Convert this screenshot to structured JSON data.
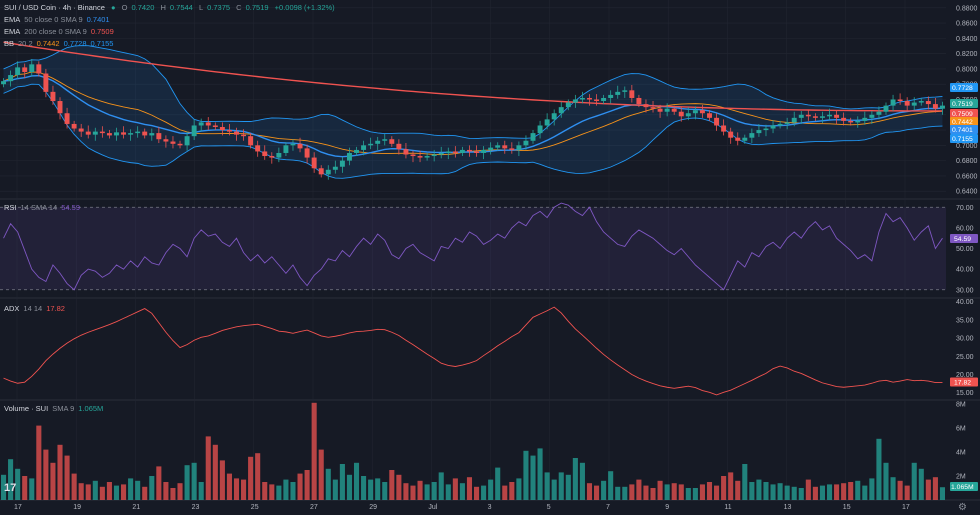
{
  "header": {
    "symbol_title": "SUI / USD Coin · 4h · Binance",
    "ohlc": {
      "o_label": "O",
      "o": "0.7420",
      "h_label": "H",
      "h": "0.7544",
      "l_label": "L",
      "l": "0.7375",
      "c_label": "C",
      "c": "0.7519",
      "change": "+0.0098 (+1.32%)"
    },
    "ema50": {
      "label": "EMA",
      "params": "50 close 0 SMA 9",
      "value": "0.7401"
    },
    "ema200": {
      "label": "EMA",
      "params": "200 close 0 SMA 9",
      "value": "0.7509"
    },
    "bb": {
      "label": "BB",
      "params": "20 2",
      "basis": "0.7442",
      "upper": "0.7728",
      "lower": "0.7155"
    }
  },
  "rsi_legend": {
    "label": "RSI",
    "params": "14 SMA 14",
    "value": "54.59"
  },
  "adx_legend": {
    "label": "ADX",
    "params": "14 14",
    "value": "17.82"
  },
  "volume_legend": {
    "label": "Volume · SUI",
    "params": "SMA 9",
    "value": "1.065M"
  },
  "colors": {
    "bg": "#161a25",
    "up": "#26a69a",
    "down": "#ef5350",
    "ema50": "#2f8ff0",
    "ema200": "#f05350",
    "bb_basis": "#f7931a",
    "bb_band": "#2196f3",
    "rsi": "#7e57c2",
    "adx": "#f05350",
    "grid": "#232733",
    "text": "#d1d4dc"
  },
  "chart_data": [
    {
      "type": "candlestick",
      "title": "SUI / USD Coin · 4h · Binance",
      "xlabel": "",
      "ylabel": "",
      "x_ticks": [
        "17",
        "19",
        "21",
        "23",
        "25",
        "27",
        "29",
        "Jul",
        "3",
        "5",
        "7",
        "9",
        "11",
        "13",
        "15",
        "17"
      ],
      "y_ticks": [
        "0.8800",
        "0.8600",
        "0.8400",
        "0.8200",
        "0.8000",
        "0.7800",
        "0.7600",
        "0.7400",
        "0.7200",
        "0.7000",
        "0.6800",
        "0.6600",
        "0.6400"
      ],
      "ylim": [
        0.635,
        0.885
      ],
      "price_labels": [
        {
          "value": "0.7728",
          "color": "#2196f3"
        },
        {
          "value": "0.7519",
          "color": "#26a69a"
        },
        {
          "value": "0.7509",
          "color": "#f05350"
        },
        {
          "value": "0.7442",
          "color": "#f7931a"
        },
        {
          "value": "0.7401",
          "color": "#2f8ff0"
        },
        {
          "value": "0.7155",
          "color": "#2196f3"
        }
      ],
      "grid": true,
      "closes": [
        0.784,
        0.792,
        0.802,
        0.796,
        0.806,
        0.794,
        0.77,
        0.758,
        0.742,
        0.728,
        0.722,
        0.718,
        0.714,
        0.718,
        0.716,
        0.713,
        0.717,
        0.714,
        0.716,
        0.718,
        0.713,
        0.716,
        0.708,
        0.705,
        0.702,
        0.7,
        0.712,
        0.726,
        0.73,
        0.726,
        0.724,
        0.72,
        0.718,
        0.714,
        0.712,
        0.7,
        0.692,
        0.686,
        0.684,
        0.69,
        0.7,
        0.702,
        0.696,
        0.684,
        0.67,
        0.662,
        0.668,
        0.672,
        0.68,
        0.69,
        0.694,
        0.7,
        0.702,
        0.706,
        0.708,
        0.702,
        0.695,
        0.688,
        0.686,
        0.684,
        0.686,
        0.688,
        0.69,
        0.692,
        0.69,
        0.694,
        0.692,
        0.69,
        0.694,
        0.697,
        0.7,
        0.696,
        0.694,
        0.7,
        0.706,
        0.716,
        0.726,
        0.734,
        0.742,
        0.75,
        0.756,
        0.76,
        0.762,
        0.76,
        0.758,
        0.762,
        0.766,
        0.77,
        0.772,
        0.762,
        0.754,
        0.75,
        0.748,
        0.744,
        0.748,
        0.744,
        0.738,
        0.742,
        0.746,
        0.742,
        0.736,
        0.726,
        0.718,
        0.71,
        0.706,
        0.71,
        0.716,
        0.72,
        0.722,
        0.726,
        0.728,
        0.73,
        0.736,
        0.74,
        0.738,
        0.736,
        0.738,
        0.74,
        0.736,
        0.732,
        0.73,
        0.732,
        0.736,
        0.74,
        0.744,
        0.752,
        0.76,
        0.758,
        0.752,
        0.756,
        0.758,
        0.754,
        0.748,
        0.752
      ]
    },
    {
      "type": "line",
      "title": "RSI 14 SMA 14",
      "y_ticks": [
        "70.00",
        "60.00",
        "50.00",
        "40.00",
        "30.00"
      ],
      "ylim": [
        26,
        74
      ],
      "bands": [
        30,
        70
      ],
      "current_label": {
        "value": "54.59",
        "color": "#7e57c2"
      },
      "values": [
        55,
        62,
        58,
        49,
        40,
        36,
        34,
        42,
        38,
        33,
        30,
        37,
        40,
        39,
        36,
        38,
        42,
        40,
        44,
        41,
        46,
        43,
        42,
        48,
        52,
        50,
        46,
        55,
        59,
        56,
        57,
        53,
        51,
        55,
        48,
        44,
        47,
        43,
        46,
        42,
        38,
        42,
        36,
        32,
        37,
        40,
        45,
        44,
        49,
        46,
        51,
        55,
        52,
        57,
        54,
        47,
        45,
        50,
        52,
        48,
        46,
        44,
        51,
        50,
        55,
        53,
        58,
        56,
        52,
        54,
        57,
        55,
        60,
        63,
        61,
        66,
        68,
        65,
        70,
        72,
        71,
        68,
        66,
        70,
        63,
        58,
        55,
        52,
        51,
        56,
        59,
        57,
        55,
        52,
        49,
        47,
        50,
        46,
        42,
        39,
        36,
        33,
        30,
        37,
        44,
        41,
        48,
        46,
        51,
        53,
        50,
        55,
        58,
        55,
        60,
        63,
        59,
        61,
        55,
        52,
        49,
        45,
        47,
        44,
        58,
        67,
        63,
        65,
        60,
        54,
        58,
        61,
        50,
        55
      ]
    },
    {
      "type": "line",
      "title": "ADX 14 14",
      "y_ticks": [
        "40.00",
        "35.00",
        "30.00",
        "25.00",
        "20.00",
        "15.00"
      ],
      "ylim": [
        13,
        41
      ],
      "current_label": {
        "value": "17.82",
        "color": "#f05350"
      },
      "values": [
        19,
        18.2,
        17.6,
        17.9,
        19.5,
        21.5,
        23.8,
        25.6,
        27.2,
        28.6,
        29.8,
        30.8,
        31.6,
        32.3,
        33,
        33.7,
        34.5,
        35.4,
        36.3,
        37.2,
        38.1,
        36.8,
        34.2,
        31.6,
        29.3,
        27.4,
        28.2,
        29.4,
        30.2,
        30.6,
        31.3,
        32.1,
        32.6,
        33.1,
        33.4,
        33.6,
        33.8,
        33.2,
        32.6,
        31.9,
        31.7,
        31.3,
        31.8,
        32.2,
        31.4,
        30.6,
        30.2,
        30.5,
        30.9,
        31.4,
        31.8,
        31.9,
        32.1,
        32.4,
        32.3,
        31.6,
        30.7,
        29.4,
        28.2,
        26.9,
        25.6,
        24.4,
        23.1,
        22.5,
        22.2,
        22.6,
        23.1,
        23.8,
        25.2,
        26.5,
        27.9,
        29.1,
        30.4,
        31.5,
        33.6,
        35.7,
        36.6,
        37.5,
        38.5,
        36.9,
        34.6,
        32.5,
        30.8,
        29,
        27.2,
        25.5,
        24,
        22.6,
        21.3,
        20,
        19,
        18.2,
        17.5,
        16.9,
        16.5,
        16.2,
        16.5,
        16.8,
        16.4,
        15.6,
        15.1,
        14.4,
        15.1,
        15.7,
        16.6,
        17.5,
        18.4,
        19.4,
        20.3,
        21.6,
        22.3,
        21.8,
        20.9,
        20.3,
        19.4,
        18.5,
        17.7,
        17.2,
        16.7,
        16.5,
        16.7,
        16.9,
        17.1,
        17.6,
        18.2,
        18.4,
        17.9,
        18.2,
        18.6,
        18.3,
        18.4,
        18.2,
        17.8,
        17.82
      ]
    },
    {
      "type": "bar",
      "title": "Volume · SUI SMA 9",
      "y_ticks": [
        "8M",
        "6M",
        "4M",
        "2M"
      ],
      "ylim": [
        0,
        8
      ],
      "current_label": {
        "value": "1.065M",
        "color": "#26a69a"
      },
      "values": [
        2.1,
        3.4,
        2.6,
        2.0,
        1.8,
        6.2,
        4.2,
        3.1,
        4.6,
        3.7,
        2.2,
        1.4,
        1.3,
        1.6,
        1.1,
        1.5,
        1.2,
        1.3,
        1.8,
        1.6,
        1.1,
        2.0,
        2.8,
        1.5,
        1.0,
        1.4,
        2.9,
        3.1,
        1.5,
        5.3,
        4.6,
        3.3,
        2.2,
        1.8,
        1.7,
        3.6,
        3.9,
        1.5,
        1.3,
        1.2,
        1.7,
        1.5,
        2.2,
        2.5,
        8.1,
        4.2,
        2.6,
        1.7,
        3.0,
        2.1,
        3.1,
        2.0,
        1.7,
        1.8,
        1.5,
        2.5,
        2.1,
        1.4,
        1.2,
        1.6,
        1.3,
        1.5,
        2.3,
        1.3,
        1.8,
        1.4,
        1.9,
        1.1,
        1.2,
        1.7,
        2.7,
        1.2,
        1.5,
        1.8,
        4.1,
        3.7,
        4.3,
        2.3,
        1.7,
        2.3,
        2.1,
        3.5,
        3.1,
        1.4,
        1.2,
        1.6,
        2.4,
        1.1,
        1.1,
        1.3,
        1.7,
        1.2,
        1.0,
        1.6,
        1.3,
        1.4,
        1.3,
        1.0,
        1.0,
        1.3,
        1.5,
        1.2,
        2.0,
        2.3,
        1.6,
        3.0,
        1.5,
        1.7,
        1.5,
        1.3,
        1.4,
        1.2,
        1.1,
        1.0,
        1.7,
        1.1,
        1.2,
        1.3,
        1.3,
        1.4,
        1.5,
        1.6,
        1.2,
        1.8,
        5.1,
        3.1,
        1.9,
        1.6,
        1.2,
        3.1,
        2.6,
        1.7,
        1.9,
        1.065
      ]
    }
  ]
}
